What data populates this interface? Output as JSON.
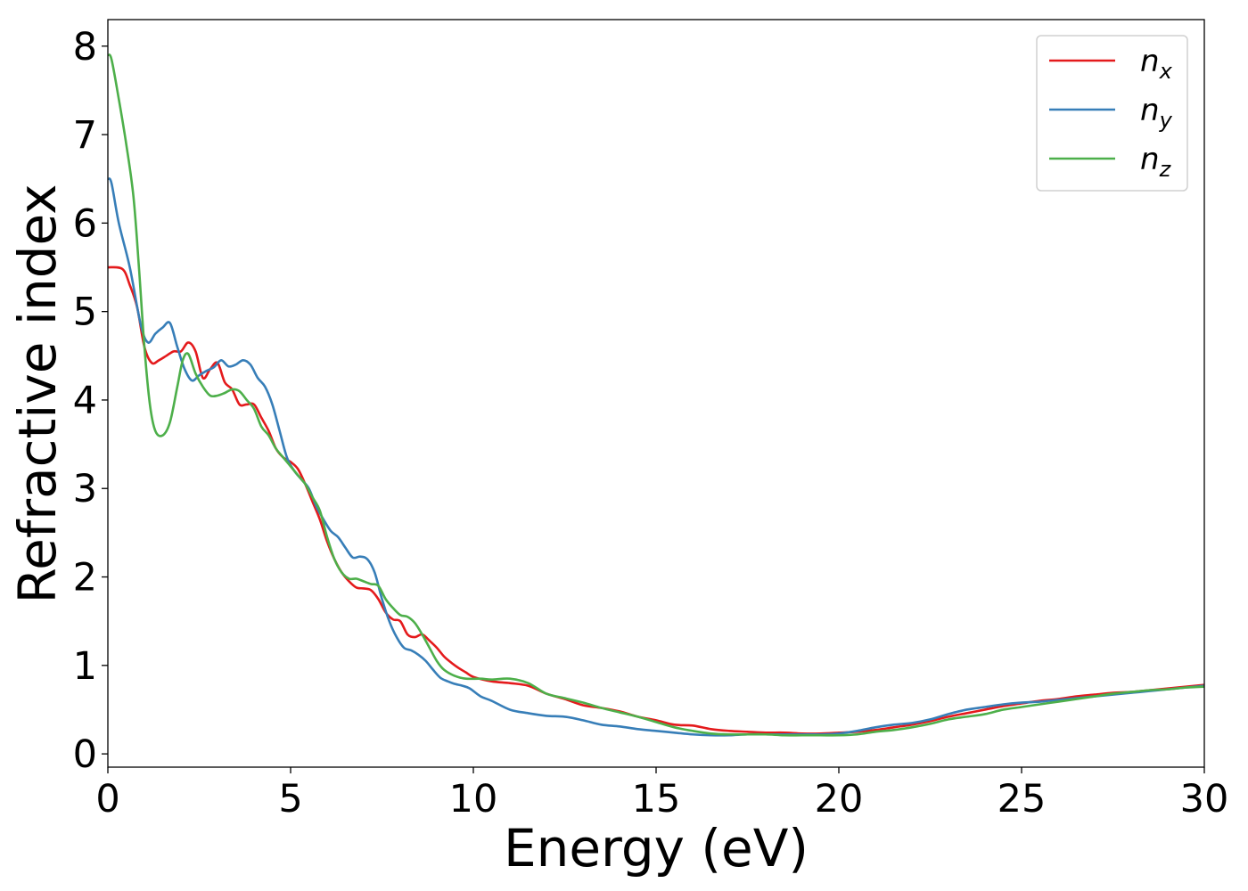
{
  "chart_data": {
    "type": "line",
    "xlabel": "Energy (eV)",
    "ylabel": "Refractive index",
    "xlim": [
      0,
      30
    ],
    "ylim": [
      -0.15,
      8.3
    ],
    "xticks": [
      "0",
      "5",
      "10",
      "15",
      "20",
      "25",
      "30"
    ],
    "yticks": [
      "0",
      "1",
      "2",
      "3",
      "4",
      "5",
      "6",
      "7",
      "8"
    ],
    "grid": false,
    "legend_position": "top-right",
    "series": [
      {
        "name": "n",
        "subscript": "x",
        "color": "#e41a1c",
        "x": [
          0,
          0.4,
          0.6,
          0.8,
          1.0,
          1.2,
          1.4,
          1.6,
          1.8,
          2.0,
          2.2,
          2.4,
          2.6,
          2.8,
          3.0,
          3.2,
          3.4,
          3.6,
          3.8,
          4.0,
          4.2,
          4.4,
          4.6,
          4.8,
          5.0,
          5.2,
          5.4,
          5.6,
          5.8,
          6.0,
          6.2,
          6.4,
          6.6,
          6.8,
          7.0,
          7.2,
          7.4,
          7.6,
          7.8,
          8.0,
          8.2,
          8.4,
          8.6,
          8.8,
          9.0,
          9.2,
          9.4,
          9.6,
          9.8,
          10.0,
          10.5,
          11.0,
          11.5,
          12.0,
          12.5,
          13.0,
          13.5,
          14.0,
          14.5,
          15.0,
          15.5,
          16.0,
          16.5,
          17.0,
          17.5,
          18.0,
          18.5,
          19.0,
          19.5,
          20.0,
          20.5,
          21.0,
          21.5,
          22.0,
          22.5,
          23.0,
          23.5,
          24.0,
          24.5,
          25.0,
          25.5,
          26.0,
          26.5,
          27.0,
          27.5,
          28.0,
          28.5,
          29.0,
          29.5,
          30.0
        ],
        "values": [
          5.5,
          5.48,
          5.3,
          5.05,
          4.6,
          4.42,
          4.45,
          4.5,
          4.55,
          4.55,
          4.65,
          4.55,
          4.25,
          4.35,
          4.42,
          4.2,
          4.12,
          3.95,
          3.95,
          3.95,
          3.8,
          3.65,
          3.45,
          3.35,
          3.3,
          3.22,
          3.05,
          2.85,
          2.65,
          2.4,
          2.2,
          2.05,
          1.95,
          1.88,
          1.87,
          1.85,
          1.75,
          1.6,
          1.52,
          1.5,
          1.35,
          1.32,
          1.35,
          1.28,
          1.2,
          1.1,
          1.03,
          0.97,
          0.92,
          0.87,
          0.82,
          0.8,
          0.77,
          0.68,
          0.62,
          0.55,
          0.52,
          0.48,
          0.42,
          0.38,
          0.33,
          0.32,
          0.28,
          0.26,
          0.25,
          0.24,
          0.24,
          0.23,
          0.23,
          0.24,
          0.25,
          0.27,
          0.3,
          0.33,
          0.37,
          0.42,
          0.46,
          0.5,
          0.54,
          0.57,
          0.6,
          0.62,
          0.65,
          0.67,
          0.69,
          0.7,
          0.72,
          0.74,
          0.76,
          0.78
        ]
      },
      {
        "name": "n",
        "subscript": "y",
        "color": "#377eb8",
        "x": [
          0,
          0.1,
          0.3,
          0.6,
          0.9,
          1.1,
          1.3,
          1.5,
          1.7,
          1.9,
          2.1,
          2.3,
          2.5,
          2.7,
          2.9,
          3.1,
          3.3,
          3.5,
          3.7,
          3.9,
          4.1,
          4.3,
          4.5,
          4.7,
          4.9,
          5.1,
          5.3,
          5.5,
          5.7,
          5.9,
          6.1,
          6.3,
          6.5,
          6.7,
          6.9,
          7.1,
          7.3,
          7.5,
          7.7,
          7.9,
          8.1,
          8.3,
          8.5,
          8.7,
          8.9,
          9.1,
          9.3,
          9.5,
          9.7,
          9.9,
          10.2,
          10.5,
          11.0,
          11.5,
          12.0,
          12.5,
          13.0,
          13.5,
          14.0,
          14.5,
          15.0,
          15.5,
          16.0,
          16.5,
          17.0,
          17.5,
          18.0,
          18.5,
          19.0,
          19.5,
          20.0,
          20.5,
          21.0,
          21.5,
          22.0,
          22.5,
          23.0,
          23.5,
          24.0,
          24.5,
          25.0,
          25.5,
          26.0,
          26.5,
          27.0,
          27.5,
          28.0,
          28.5,
          29.0,
          29.5,
          30.0
        ],
        "values": [
          6.5,
          6.45,
          6.0,
          5.5,
          4.85,
          4.65,
          4.75,
          4.82,
          4.87,
          4.6,
          4.35,
          4.22,
          4.28,
          4.33,
          4.37,
          4.45,
          4.38,
          4.4,
          4.45,
          4.4,
          4.25,
          4.15,
          3.95,
          3.65,
          3.35,
          3.2,
          3.1,
          3.0,
          2.8,
          2.65,
          2.52,
          2.45,
          2.33,
          2.22,
          2.23,
          2.2,
          2.05,
          1.75,
          1.5,
          1.32,
          1.2,
          1.17,
          1.12,
          1.05,
          0.95,
          0.86,
          0.82,
          0.79,
          0.77,
          0.74,
          0.65,
          0.6,
          0.5,
          0.46,
          0.43,
          0.42,
          0.38,
          0.33,
          0.31,
          0.28,
          0.26,
          0.24,
          0.22,
          0.21,
          0.21,
          0.22,
          0.22,
          0.22,
          0.22,
          0.22,
          0.23,
          0.26,
          0.3,
          0.33,
          0.35,
          0.39,
          0.45,
          0.5,
          0.53,
          0.56,
          0.58,
          0.59,
          0.61,
          0.63,
          0.65,
          0.67,
          0.69,
          0.71,
          0.73,
          0.75,
          0.77
        ]
      },
      {
        "name": "n",
        "subscript": "z",
        "color": "#4daf4a",
        "x": [
          0,
          0.1,
          0.3,
          0.5,
          0.7,
          0.85,
          1.0,
          1.15,
          1.3,
          1.5,
          1.7,
          1.9,
          2.05,
          2.2,
          2.4,
          2.6,
          2.8,
          3.0,
          3.2,
          3.4,
          3.6,
          3.8,
          4.0,
          4.2,
          4.4,
          4.6,
          4.8,
          5.0,
          5.2,
          5.4,
          5.6,
          5.8,
          6.0,
          6.2,
          6.4,
          6.6,
          6.8,
          7.0,
          7.2,
          7.4,
          7.6,
          7.8,
          8.0,
          8.2,
          8.4,
          8.6,
          8.8,
          9.0,
          9.2,
          9.5,
          9.8,
          10.2,
          10.5,
          11.0,
          11.5,
          12.0,
          12.5,
          13.0,
          13.5,
          14.0,
          14.5,
          15.0,
          15.5,
          16.0,
          16.5,
          17.0,
          17.5,
          18.0,
          18.5,
          19.0,
          19.5,
          20.0,
          20.5,
          21.0,
          21.5,
          22.0,
          22.5,
          23.0,
          23.5,
          24.0,
          24.5,
          25.0,
          25.5,
          26.0,
          26.5,
          27.0,
          27.5,
          28.0,
          28.5,
          29.0,
          29.5,
          30.0
        ],
        "values": [
          7.9,
          7.85,
          7.4,
          6.9,
          6.3,
          5.5,
          4.6,
          3.95,
          3.65,
          3.6,
          3.75,
          4.15,
          4.45,
          4.52,
          4.3,
          4.15,
          4.05,
          4.05,
          4.08,
          4.12,
          4.1,
          4.0,
          3.9,
          3.7,
          3.6,
          3.45,
          3.35,
          3.25,
          3.15,
          3.05,
          2.9,
          2.75,
          2.45,
          2.2,
          2.05,
          1.98,
          1.98,
          1.95,
          1.92,
          1.9,
          1.75,
          1.65,
          1.57,
          1.55,
          1.48,
          1.35,
          1.2,
          1.05,
          0.95,
          0.88,
          0.85,
          0.85,
          0.84,
          0.85,
          0.8,
          0.68,
          0.63,
          0.58,
          0.52,
          0.47,
          0.42,
          0.36,
          0.3,
          0.26,
          0.23,
          0.22,
          0.22,
          0.22,
          0.21,
          0.21,
          0.21,
          0.21,
          0.22,
          0.25,
          0.27,
          0.3,
          0.34,
          0.39,
          0.42,
          0.45,
          0.5,
          0.53,
          0.56,
          0.59,
          0.62,
          0.65,
          0.68,
          0.7,
          0.72,
          0.73,
          0.75,
          0.76
        ]
      }
    ]
  }
}
